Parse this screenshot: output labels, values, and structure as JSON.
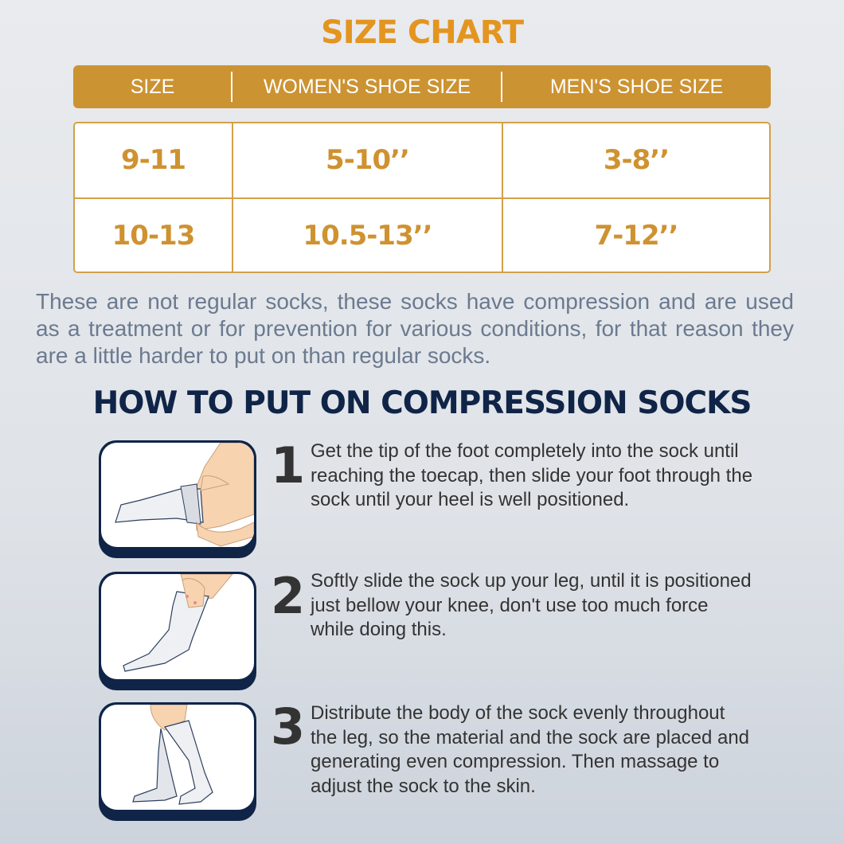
{
  "title": "SIZE CHART",
  "table": {
    "headers": [
      "SIZE",
      "WOMEN'S SHOE SIZE",
      "MEN'S SHOE SIZE"
    ],
    "rows": [
      [
        "9-11",
        "5-10’’",
        "3-8’’"
      ],
      [
        "10-13",
        "10.5-13’’",
        "7-12’’"
      ]
    ]
  },
  "description": "These are not regular socks, these socks have compression and are used as a treatment or for prevention for various conditions, for that reason they are a little harder to put on than regular socks.",
  "howto": {
    "title": "HOW TO PUT ON COMPRESSION SOCKS",
    "steps": [
      {
        "number": "1",
        "text": "Get the tip of the foot completely into the sock until reaching the toecap, then slide your foot through the sock until your heel is well positioned."
      },
      {
        "number": "2",
        "text": "Softly slide the sock up your leg, until it is positioned just bellow your knee, don't use too much force while doing this."
      },
      {
        "number": "3",
        "text": "Distribute the body of the sock evenly throughout the leg, so the material and the sock are placed and generating even compression. Then massage to adjust the sock to the skin."
      }
    ]
  },
  "colors": {
    "gold": "#cc9332",
    "title_orange": "#e3951f",
    "navy": "#0f2447",
    "text_gray": "#6b7a8f"
  }
}
